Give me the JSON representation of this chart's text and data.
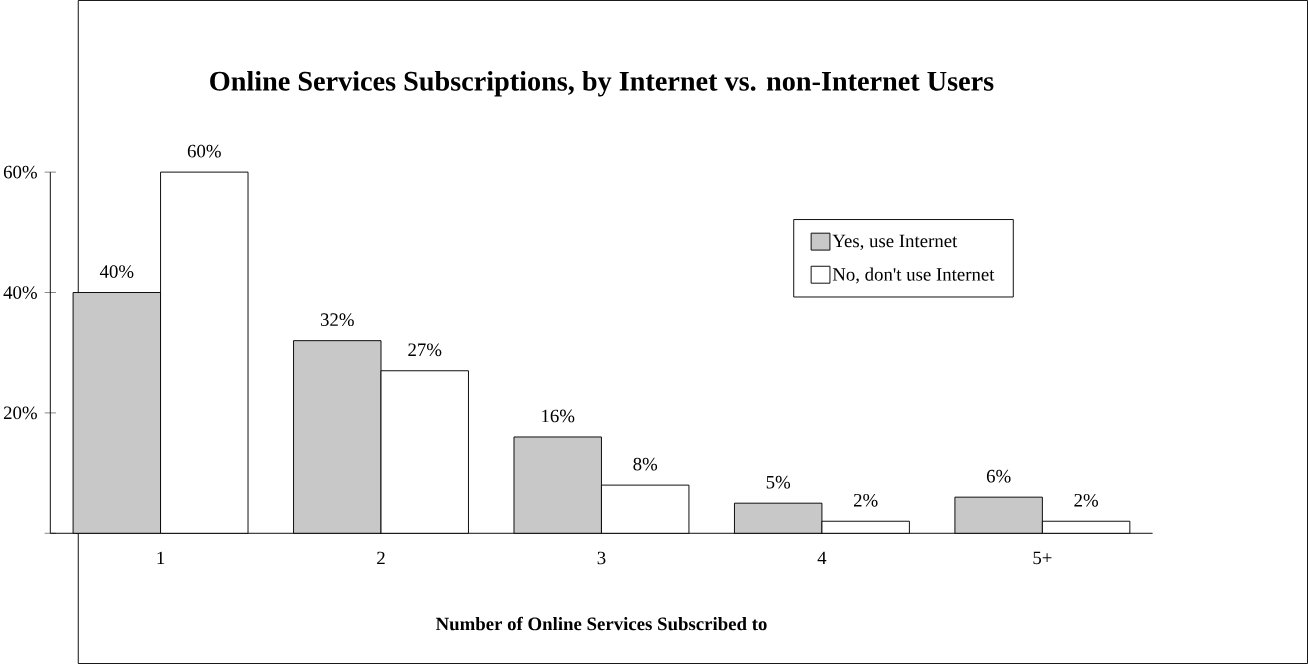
{
  "chart_data": {
    "type": "bar",
    "title": "Online Services Subscriptions, by Internet vs. non-Internet Users",
    "xlabel": "Number of Online Services Subscribed to",
    "categories": [
      "1",
      "2",
      "3",
      "4",
      "5+"
    ],
    "series": [
      {
        "name": "Yes, use Internet",
        "color": "#c8c8c8",
        "values": [
          40,
          32,
          16,
          5,
          6
        ],
        "value_labels": [
          "40%",
          "32%",
          "16%",
          "5%",
          "6%"
        ]
      },
      {
        "name": "No, don't use Internet",
        "color": "#ffffff",
        "values": [
          60,
          27,
          8,
          2,
          2
        ],
        "value_labels": [
          "60%",
          "27%",
          "8%",
          "2%",
          "2%"
        ]
      }
    ],
    "ylim": [
      0,
      60
    ],
    "yticks": [
      {
        "value": 0,
        "label": null
      },
      {
        "value": 20,
        "label": "20%"
      },
      {
        "value": 40,
        "label": "40%"
      },
      {
        "value": 60,
        "label": "60%"
      }
    ],
    "legend": "top right",
    "grid": false
  }
}
